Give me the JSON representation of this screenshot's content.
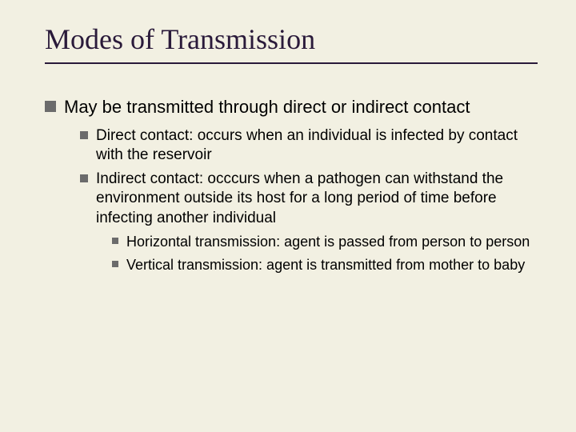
{
  "slide": {
    "background_color": "#f2f0e2",
    "title_color": "#2a1a3a",
    "bullet_color": "#6b6b6b",
    "text_color": "#000000",
    "title_font": "Times New Roman",
    "body_font": "Arial",
    "title_fontsize": 36,
    "l1_fontsize": 22,
    "l2_fontsize": 19,
    "l3_fontsize": 18,
    "title": "Modes of Transmission",
    "l1": "May be transmitted through direct or indirect contact",
    "l2a": "Direct contact:  occurs when an individual is infected by contact with the reservoir",
    "l2b": "Indirect contact:  occcurs when a pathogen can withstand the environment outside its host for a long period of time before infecting another individual",
    "l3a": "Horizontal transmission:  agent is passed from person to person",
    "l3b": "Vertical transmission: agent is transmitted from mother to baby"
  }
}
